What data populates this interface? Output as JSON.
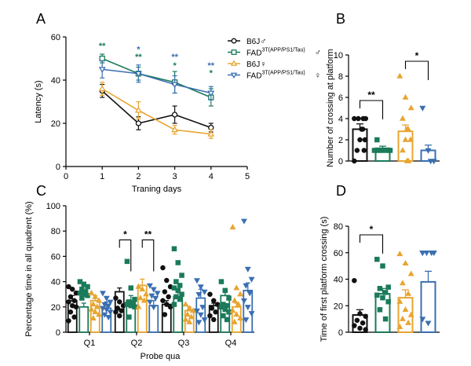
{
  "colors": {
    "b6j_male": "#111111",
    "fad_male": "#1a7a5a",
    "b6j_female": "#e8a531",
    "fad_female": "#3a6fb0",
    "axis": "#000000"
  },
  "chart_data": [
    {
      "panel": "A",
      "type": "line",
      "xlabel": "Traning days",
      "ylabel": "Latency (s)",
      "xlim": [
        0,
        5
      ],
      "ylim": [
        0,
        60
      ],
      "xticks": [
        "0",
        "1",
        "2",
        "3",
        "4",
        "5"
      ],
      "yticks": [
        "0",
        "20",
        "40",
        "60"
      ],
      "x": [
        1,
        2,
        3,
        4
      ],
      "legend": [
        {
          "base": "B6J",
          "sup": "",
          "sym": "♂"
        },
        {
          "base": "FAD",
          "sup": "3T(APP/PS1/Tau)",
          "sym": "♂"
        },
        {
          "base": "B6J",
          "sup": "",
          "sym": "♀"
        },
        {
          "base": "FAD",
          "sup": "3T(APP/PS1/Tau)",
          "sym": "♀"
        }
      ],
      "series": [
        {
          "values": [
            35,
            20,
            24,
            18
          ],
          "errors": [
            3,
            3,
            4,
            2
          ]
        },
        {
          "values": [
            50,
            43,
            39,
            32
          ],
          "errors": [
            2,
            3,
            5,
            4
          ]
        },
        {
          "values": [
            36,
            26,
            17,
            15
          ],
          "errors": [
            3,
            4,
            2,
            2
          ]
        },
        {
          "values": [
            45,
            43,
            38,
            34
          ],
          "errors": [
            4,
            4,
            4,
            3
          ]
        }
      ],
      "annotations": [
        {
          "x": 1,
          "y": 54.5,
          "text": "**",
          "color": "fad_male"
        },
        {
          "x": 2,
          "y": 53,
          "text": "*",
          "color": "fad_female"
        },
        {
          "x": 2,
          "y": 49.5,
          "text": "**",
          "color": "fad_male"
        },
        {
          "x": 3,
          "y": 49.5,
          "text": "**",
          "color": "fad_female"
        },
        {
          "x": 3,
          "y": 45.5,
          "text": "*",
          "color": "fad_male"
        },
        {
          "x": 4,
          "y": 45.5,
          "text": "**",
          "color": "fad_female"
        },
        {
          "x": 4,
          "y": 42,
          "text": "*",
          "color": "fad_male"
        }
      ]
    },
    {
      "panel": "B",
      "type": "bar",
      "ylabel": "Number of crossing at platform",
      "ylim": [
        0,
        10
      ],
      "yticks": [
        "0",
        "2",
        "4",
        "6",
        "8",
        "10"
      ],
      "values": [
        3.0,
        1.2,
        2.8,
        1.0
      ],
      "errors": [
        0.5,
        0.2,
        0.6,
        0.5
      ],
      "points": [
        [
          4,
          4,
          4,
          4,
          3,
          3,
          2,
          2,
          1,
          1,
          0
        ],
        [
          2,
          1,
          1,
          1,
          1,
          1
        ],
        [
          8,
          6,
          5,
          4,
          3,
          3,
          2,
          2,
          1,
          0,
          0
        ],
        [
          5,
          1,
          0,
          0
        ]
      ],
      "significance": [
        {
          "from": 0,
          "to": 1,
          "text": "**"
        },
        {
          "from": 2,
          "to": 3,
          "text": "*"
        }
      ]
    },
    {
      "panel": "C",
      "type": "bar",
      "xlabel": "Probe qua",
      "ylabel": "Percentage time in all quadrent (%)",
      "ylim": [
        0,
        100
      ],
      "yticks": [
        "0",
        "20",
        "40",
        "60",
        "80",
        "100"
      ],
      "categories": [
        "Q1",
        "Q2",
        "Q3",
        "Q4"
      ],
      "series": [
        {
          "values": [
            25,
            32,
            22,
            21
          ],
          "errors": [
            4,
            3,
            3,
            2
          ]
        },
        {
          "values": [
            20,
            25,
            28,
            29
          ],
          "errors": [
            3,
            4,
            4,
            3
          ]
        },
        {
          "values": [
            25,
            37,
            17,
            20
          ],
          "errors": [
            4,
            5,
            3,
            3
          ]
        },
        {
          "values": [
            19,
            21,
            27,
            33
          ],
          "errors": [
            5,
            4,
            7,
            6
          ]
        }
      ],
      "points": [
        [
          [
            36,
            34,
            31,
            28,
            25,
            24,
            21,
            20,
            16,
            12,
            9
          ],
          [
            40,
            38,
            36,
            34,
            32,
            31,
            30,
            29,
            27
          ],
          [
            31,
            28,
            25,
            22,
            20,
            18,
            16,
            14,
            11
          ],
          [
            31,
            27,
            24,
            22,
            21,
            19,
            18,
            16,
            14,
            12
          ]
        ],
        [
          [
            27,
            24,
            21,
            19,
            17,
            16,
            13
          ],
          [
            56,
            35,
            26,
            24,
            23,
            22,
            21,
            20,
            12
          ],
          [
            36,
            34,
            30,
            27,
            25,
            20
          ],
          [
            37,
            34,
            31,
            29,
            27,
            24,
            20
          ]
        ],
        [
          [
            51,
            41,
            36,
            32,
            28,
            25,
            22,
            20,
            14
          ],
          [
            66,
            55,
            45,
            40,
            37,
            35,
            33,
            30,
            28,
            26,
            22
          ],
          [
            22,
            19,
            17,
            14,
            12,
            10,
            8
          ],
          [
            41,
            36,
            32,
            30,
            20,
            17,
            14,
            10,
            8
          ]
        ],
        [
          [
            30,
            25,
            22,
            19,
            16,
            13,
            10
          ],
          [
            40,
            33,
            27,
            22,
            21,
            20,
            18,
            16,
            13,
            10
          ],
          [
            83,
            35,
            30,
            25,
            22,
            17,
            14,
            11,
            8
          ],
          [
            88,
            50,
            42,
            37,
            31,
            25,
            20,
            15,
            10
          ]
        ]
      ],
      "significance": [
        {
          "category": 1,
          "from": 0,
          "to": 1,
          "text": "*"
        },
        {
          "category": 1,
          "from": 2,
          "to": 3,
          "text": "**"
        }
      ]
    },
    {
      "panel": "D",
      "type": "bar",
      "ylabel": "Time of first platform crossing (s)",
      "ylim": [
        0,
        80
      ],
      "yticks": [
        "0",
        "20",
        "40",
        "60",
        "80"
      ],
      "values": [
        13,
        29,
        26,
        38
      ],
      "errors": [
        4,
        4,
        6,
        8
      ],
      "points": [
        [
          39,
          14,
          12,
          9,
          7,
          5,
          3,
          2
        ],
        [
          55,
          50,
          34,
          33,
          30,
          28,
          26,
          23,
          17,
          10
        ],
        [
          59,
          52,
          44,
          37,
          29,
          23,
          17,
          13,
          10,
          7,
          4
        ],
        [
          60,
          60,
          60,
          60,
          60,
          10,
          7
        ]
      ],
      "significance": [
        {
          "from": 0,
          "to": 1,
          "text": "*"
        }
      ]
    }
  ]
}
